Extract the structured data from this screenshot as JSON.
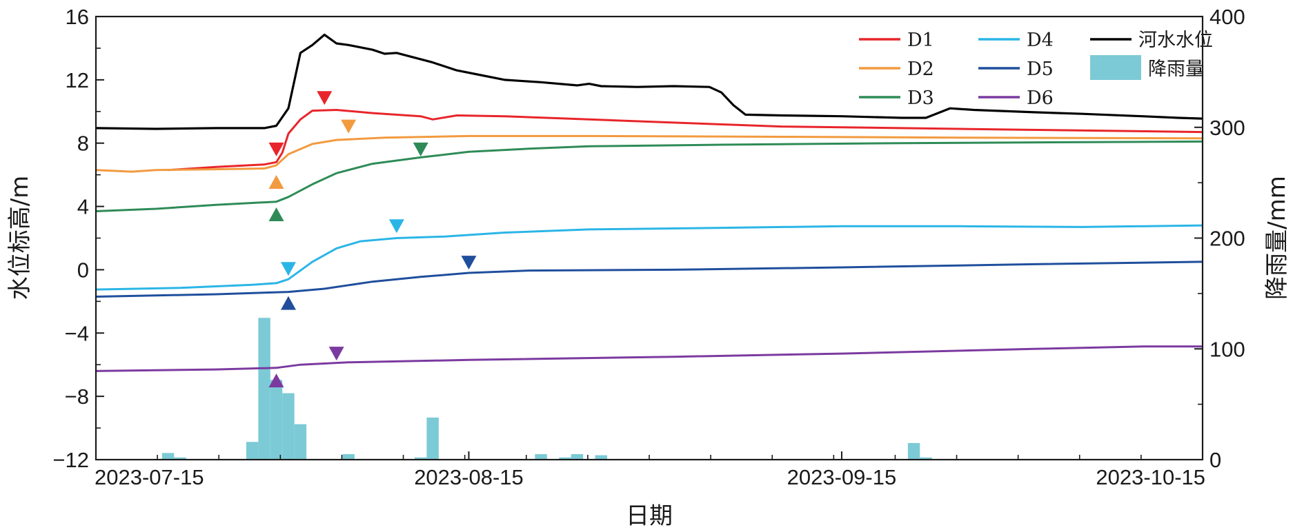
{
  "chart_data": {
    "type": "line",
    "xlabel": "日期",
    "ylabel": "水位标高/m",
    "y2label": "降雨量/mm",
    "x_range": [
      "2023-07-15",
      "2023-10-15"
    ],
    "x_ticks": [
      "2023-07-15",
      "2023-08-15",
      "2023-09-15",
      "2023-10-15"
    ],
    "ylim": [
      -12,
      16
    ],
    "yticks": [
      "16",
      "12",
      "8",
      "4",
      "0",
      "−4",
      "−8",
      "−12"
    ],
    "y2lim": [
      0,
      400
    ],
    "y2ticks": [
      "400",
      "300",
      "200",
      "100",
      "0"
    ],
    "grid": false,
    "legend_position": "top-right",
    "series": [
      {
        "name": "D1",
        "color": "#e8252a",
        "axis": "left",
        "points": [
          [
            "2023-07-21",
            6.3
          ],
          [
            "2023-07-25",
            6.5
          ],
          [
            "2023-07-29",
            6.65
          ],
          [
            "2023-07-30",
            6.8
          ],
          [
            "2023-07-30T12",
            7.4
          ],
          [
            "2023-07-31",
            8.6
          ],
          [
            "2023-08-01",
            9.5
          ],
          [
            "2023-08-02",
            10.05
          ],
          [
            "2023-08-04",
            10.1
          ],
          [
            "2023-08-07",
            9.9
          ],
          [
            "2023-08-11",
            9.7
          ],
          [
            "2023-08-12",
            9.5
          ],
          [
            "2023-08-14",
            9.75
          ],
          [
            "2023-08-18",
            9.7
          ],
          [
            "2023-08-25",
            9.5
          ],
          [
            "2023-09-01",
            9.3
          ],
          [
            "2023-09-10",
            9.05
          ],
          [
            "2023-09-20",
            8.95
          ],
          [
            "2023-09-30",
            8.85
          ],
          [
            "2023-10-15",
            8.7
          ]
        ]
      },
      {
        "name": "D2",
        "color": "#f29a3f",
        "axis": "left",
        "points": [
          [
            "2023-07-15",
            6.3
          ],
          [
            "2023-07-18",
            6.2
          ],
          [
            "2023-07-20",
            6.3
          ],
          [
            "2023-07-25",
            6.35
          ],
          [
            "2023-07-29",
            6.4
          ],
          [
            "2023-07-30",
            6.6
          ],
          [
            "2023-07-31",
            7.3
          ],
          [
            "2023-08-02",
            7.95
          ],
          [
            "2023-08-04",
            8.2
          ],
          [
            "2023-08-08",
            8.35
          ],
          [
            "2023-08-15",
            8.45
          ],
          [
            "2023-08-25",
            8.45
          ],
          [
            "2023-09-10",
            8.4
          ],
          [
            "2023-09-25",
            8.35
          ],
          [
            "2023-10-15",
            8.3
          ]
        ]
      },
      {
        "name": "D3",
        "color": "#2e8b57",
        "axis": "left",
        "points": [
          [
            "2023-07-15",
            3.7
          ],
          [
            "2023-07-20",
            3.85
          ],
          [
            "2023-07-25",
            4.1
          ],
          [
            "2023-07-30",
            4.3
          ],
          [
            "2023-07-31",
            4.6
          ],
          [
            "2023-08-02",
            5.4
          ],
          [
            "2023-08-04",
            6.1
          ],
          [
            "2023-08-07",
            6.7
          ],
          [
            "2023-08-11",
            7.1
          ],
          [
            "2023-08-15",
            7.45
          ],
          [
            "2023-08-20",
            7.65
          ],
          [
            "2023-08-25",
            7.8
          ],
          [
            "2023-09-05",
            7.9
          ],
          [
            "2023-09-20",
            8.0
          ],
          [
            "2023-10-15",
            8.1
          ]
        ]
      },
      {
        "name": "D4",
        "color": "#2bb5e6",
        "axis": "left",
        "points": [
          [
            "2023-07-15",
            -1.25
          ],
          [
            "2023-07-22",
            -1.15
          ],
          [
            "2023-07-28",
            -0.95
          ],
          [
            "2023-07-30",
            -0.85
          ],
          [
            "2023-07-31",
            -0.6
          ],
          [
            "2023-08-02",
            0.5
          ],
          [
            "2023-08-04",
            1.35
          ],
          [
            "2023-08-06",
            1.8
          ],
          [
            "2023-08-09",
            2.0
          ],
          [
            "2023-08-13",
            2.1
          ],
          [
            "2023-08-18",
            2.35
          ],
          [
            "2023-08-25",
            2.55
          ],
          [
            "2023-09-05",
            2.65
          ],
          [
            "2023-09-15",
            2.75
          ],
          [
            "2023-09-25",
            2.75
          ],
          [
            "2023-10-05",
            2.7
          ],
          [
            "2023-10-15",
            2.8
          ]
        ]
      },
      {
        "name": "D5",
        "color": "#1f4e9c",
        "axis": "left",
        "points": [
          [
            "2023-07-15",
            -1.7
          ],
          [
            "2023-07-25",
            -1.55
          ],
          [
            "2023-07-31",
            -1.4
          ],
          [
            "2023-08-03",
            -1.2
          ],
          [
            "2023-08-07",
            -0.75
          ],
          [
            "2023-08-11",
            -0.45
          ],
          [
            "2023-08-15",
            -0.2
          ],
          [
            "2023-08-20",
            -0.05
          ],
          [
            "2023-09-01",
            0.0
          ],
          [
            "2023-09-15",
            0.15
          ],
          [
            "2023-10-01",
            0.35
          ],
          [
            "2023-10-15",
            0.5
          ]
        ]
      },
      {
        "name": "D6",
        "color": "#7b3aa0",
        "axis": "left",
        "points": [
          [
            "2023-07-15",
            -6.4
          ],
          [
            "2023-07-25",
            -6.3
          ],
          [
            "2023-07-30",
            -6.2
          ],
          [
            "2023-08-01",
            -6.0
          ],
          [
            "2023-08-05",
            -5.85
          ],
          [
            "2023-08-15",
            -5.7
          ],
          [
            "2023-09-01",
            -5.5
          ],
          [
            "2023-09-15",
            -5.3
          ],
          [
            "2023-10-01",
            -5.0
          ],
          [
            "2023-10-10",
            -4.85
          ],
          [
            "2023-10-15",
            -4.85
          ]
        ]
      },
      {
        "name": "河水水位",
        "color": "#000000",
        "axis": "left",
        "points": [
          [
            "2023-07-15",
            8.95
          ],
          [
            "2023-07-20",
            8.9
          ],
          [
            "2023-07-25",
            8.95
          ],
          [
            "2023-07-29",
            8.95
          ],
          [
            "2023-07-30",
            9.1
          ],
          [
            "2023-07-31",
            10.2
          ],
          [
            "2023-08-01",
            13.7
          ],
          [
            "2023-08-02",
            14.2
          ],
          [
            "2023-08-03",
            14.85
          ],
          [
            "2023-08-04",
            14.3
          ],
          [
            "2023-08-05",
            14.2
          ],
          [
            "2023-08-07",
            13.9
          ],
          [
            "2023-08-08",
            13.65
          ],
          [
            "2023-08-09",
            13.7
          ],
          [
            "2023-08-12",
            13.1
          ],
          [
            "2023-08-14",
            12.6
          ],
          [
            "2023-08-16",
            12.3
          ],
          [
            "2023-08-18",
            12.0
          ],
          [
            "2023-08-21",
            11.85
          ],
          [
            "2023-08-24",
            11.65
          ],
          [
            "2023-08-25",
            11.75
          ],
          [
            "2023-08-26",
            11.6
          ],
          [
            "2023-08-29",
            11.55
          ],
          [
            "2023-09-01",
            11.6
          ],
          [
            "2023-09-04",
            11.55
          ],
          [
            "2023-09-05",
            11.2
          ],
          [
            "2023-09-06",
            10.4
          ],
          [
            "2023-09-07",
            9.8
          ],
          [
            "2023-09-10",
            9.75
          ],
          [
            "2023-09-15",
            9.7
          ],
          [
            "2023-09-20",
            9.6
          ],
          [
            "2023-09-22",
            9.6
          ],
          [
            "2023-09-24",
            10.2
          ],
          [
            "2023-09-26",
            10.1
          ],
          [
            "2023-10-01",
            9.95
          ],
          [
            "2023-10-05",
            9.85
          ],
          [
            "2023-10-10",
            9.7
          ],
          [
            "2023-10-13",
            9.6
          ],
          [
            "2023-10-15",
            9.55
          ]
        ]
      }
    ],
    "rainfall": {
      "name": "降雨量",
      "color": "#7ccad6",
      "axis": "right",
      "bars": [
        [
          "2023-07-21",
          6
        ],
        [
          "2023-07-22",
          2
        ],
        [
          "2023-07-28",
          16
        ],
        [
          "2023-07-29",
          128
        ],
        [
          "2023-07-30",
          72
        ],
        [
          "2023-07-31",
          60
        ],
        [
          "2023-08-01",
          32
        ],
        [
          "2023-08-05",
          5
        ],
        [
          "2023-08-11",
          2
        ],
        [
          "2023-08-12",
          38
        ],
        [
          "2023-08-21",
          5
        ],
        [
          "2023-08-23",
          2
        ],
        [
          "2023-08-24",
          5
        ],
        [
          "2023-08-26",
          4
        ],
        [
          "2023-09-21",
          15
        ],
        [
          "2023-09-22",
          2
        ]
      ]
    },
    "markers": [
      {
        "series": "D1",
        "color": "#e8252a",
        "dir": "down",
        "date": "2023-07-30",
        "y": 7.6
      },
      {
        "series": "D1",
        "color": "#e8252a",
        "dir": "down",
        "date": "2023-08-03",
        "y": 10.85
      },
      {
        "series": "D2",
        "color": "#f29a3f",
        "dir": "up",
        "date": "2023-07-30",
        "y": 5.55
      },
      {
        "series": "D2",
        "color": "#f29a3f",
        "dir": "down",
        "date": "2023-08-05",
        "y": 9.05
      },
      {
        "series": "D3",
        "color": "#2e8b57",
        "dir": "up",
        "date": "2023-07-30",
        "y": 3.5
      },
      {
        "series": "D3",
        "color": "#2e8b57",
        "dir": "down",
        "date": "2023-08-11",
        "y": 7.6
      },
      {
        "series": "D4",
        "color": "#2bb5e6",
        "dir": "down",
        "date": "2023-07-31",
        "y": 0.05
      },
      {
        "series": "D4",
        "color": "#2bb5e6",
        "dir": "down",
        "date": "2023-08-09",
        "y": 2.75
      },
      {
        "series": "D5",
        "color": "#1f4e9c",
        "dir": "up",
        "date": "2023-07-31",
        "y": -2.1
      },
      {
        "series": "D5",
        "color": "#1f4e9c",
        "dir": "down",
        "date": "2023-08-15",
        "y": 0.45
      },
      {
        "series": "D6",
        "color": "#7b3aa0",
        "dir": "up",
        "date": "2023-07-30",
        "y": -7.0
      },
      {
        "series": "D6",
        "color": "#7b3aa0",
        "dir": "down",
        "date": "2023-08-04",
        "y": -5.3
      }
    ],
    "legend": [
      {
        "label": "D1",
        "color": "#e8252a",
        "kind": "line"
      },
      {
        "label": "D2",
        "color": "#f29a3f",
        "kind": "line"
      },
      {
        "label": "D3",
        "color": "#2e8b57",
        "kind": "line"
      },
      {
        "label": "D4",
        "color": "#2bb5e6",
        "kind": "line"
      },
      {
        "label": "D5",
        "color": "#1f4e9c",
        "kind": "line"
      },
      {
        "label": "D6",
        "color": "#7b3aa0",
        "kind": "line"
      },
      {
        "label": "河水水位",
        "color": "#000000",
        "kind": "line"
      },
      {
        "label": "降雨量",
        "color": "#7ccad6",
        "kind": "patch"
      }
    ]
  }
}
